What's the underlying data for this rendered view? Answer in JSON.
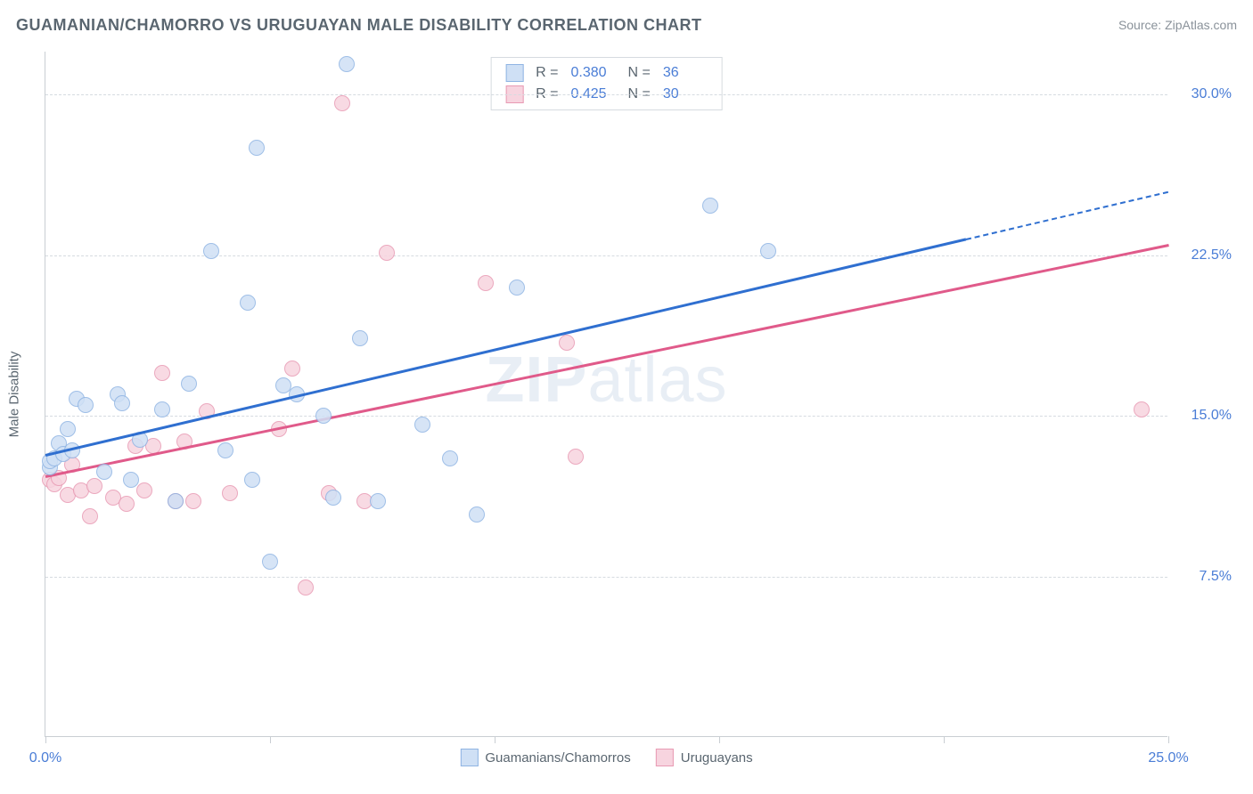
{
  "title": "GUAMANIAN/CHAMORRO VS URUGUAYAN MALE DISABILITY CORRELATION CHART",
  "source": "Source: ZipAtlas.com",
  "watermark_a": "ZIP",
  "watermark_b": "atlas",
  "chart": {
    "type": "scatter",
    "y_axis_title": "Male Disability",
    "xlim": [
      0,
      25
    ],
    "ylim": [
      0,
      32
    ],
    "y_ticks": [
      7.5,
      15.0,
      22.5,
      30.0
    ],
    "y_tick_labels": [
      "7.5%",
      "15.0%",
      "22.5%",
      "30.0%"
    ],
    "x_ticks": [
      0,
      5,
      10,
      15,
      20,
      25
    ],
    "x_tick_labels": {
      "0": "0.0%",
      "25": "25.0%"
    },
    "background_color": "#ffffff",
    "grid_color": "#d6dbe0",
    "axis_color": "#c9ced3",
    "tick_label_color": "#4a7dd6",
    "marker_radius": 9,
    "marker_stroke_width": 1.5,
    "series": [
      {
        "name": "Guamanians/Chamorros",
        "fill": "#cfe0f5",
        "stroke": "#8fb4e3",
        "line_color": "#2f6fd0",
        "R": "0.380",
        "N": "36",
        "trend": {
          "x1": 0,
          "y1": 13.2,
          "x2": 25,
          "y2": 25.5,
          "dash_from_x": 20.5
        },
        "points": [
          [
            0.1,
            12.6
          ],
          [
            0.1,
            12.9
          ],
          [
            0.2,
            13.0
          ],
          [
            0.3,
            13.7
          ],
          [
            0.4,
            13.2
          ],
          [
            0.5,
            14.4
          ],
          [
            0.6,
            13.4
          ],
          [
            0.7,
            15.8
          ],
          [
            0.9,
            15.5
          ],
          [
            1.3,
            12.4
          ],
          [
            1.6,
            16.0
          ],
          [
            1.7,
            15.6
          ],
          [
            1.9,
            12.0
          ],
          [
            2.1,
            13.9
          ],
          [
            2.6,
            15.3
          ],
          [
            2.9,
            11.0
          ],
          [
            3.2,
            16.5
          ],
          [
            3.7,
            22.7
          ],
          [
            4.0,
            13.4
          ],
          [
            4.5,
            20.3
          ],
          [
            4.6,
            12.0
          ],
          [
            4.7,
            27.5
          ],
          [
            5.0,
            8.2
          ],
          [
            5.3,
            16.4
          ],
          [
            5.6,
            16.0
          ],
          [
            6.2,
            15.0
          ],
          [
            6.4,
            11.2
          ],
          [
            6.7,
            31.4
          ],
          [
            7.0,
            18.6
          ],
          [
            7.4,
            11.0
          ],
          [
            8.4,
            14.6
          ],
          [
            9.0,
            13.0
          ],
          [
            9.6,
            10.4
          ],
          [
            10.5,
            21.0
          ],
          [
            14.8,
            24.8
          ],
          [
            16.1,
            22.7
          ]
        ]
      },
      {
        "name": "Uruguayans",
        "fill": "#f7d4df",
        "stroke": "#e89ab3",
        "line_color": "#e05a8a",
        "R": "0.425",
        "N": "30",
        "trend": {
          "x1": 0,
          "y1": 12.2,
          "x2": 25,
          "y2": 23.0,
          "dash_from_x": 25
        },
        "points": [
          [
            0.1,
            12.0
          ],
          [
            0.2,
            11.8
          ],
          [
            0.3,
            12.1
          ],
          [
            0.5,
            11.3
          ],
          [
            0.6,
            12.7
          ],
          [
            0.8,
            11.5
          ],
          [
            1.0,
            10.3
          ],
          [
            1.1,
            11.7
          ],
          [
            1.5,
            11.2
          ],
          [
            1.8,
            10.9
          ],
          [
            2.0,
            13.6
          ],
          [
            2.2,
            11.5
          ],
          [
            2.4,
            13.6
          ],
          [
            2.6,
            17.0
          ],
          [
            2.9,
            11.0
          ],
          [
            3.1,
            13.8
          ],
          [
            3.3,
            11.0
          ],
          [
            3.6,
            15.2
          ],
          [
            4.1,
            11.4
          ],
          [
            5.2,
            14.4
          ],
          [
            5.5,
            17.2
          ],
          [
            5.8,
            7.0
          ],
          [
            6.3,
            11.4
          ],
          [
            6.6,
            29.6
          ],
          [
            7.1,
            11.0
          ],
          [
            7.6,
            22.6
          ],
          [
            9.8,
            21.2
          ],
          [
            11.6,
            18.4
          ],
          [
            11.8,
            13.1
          ],
          [
            24.4,
            15.3
          ]
        ]
      }
    ]
  },
  "stats_legend": {
    "labels": {
      "R": "R =",
      "N": "N ="
    }
  },
  "bottom_legend": {
    "items": [
      "Guamanians/Chamorros",
      "Uruguayans"
    ]
  }
}
